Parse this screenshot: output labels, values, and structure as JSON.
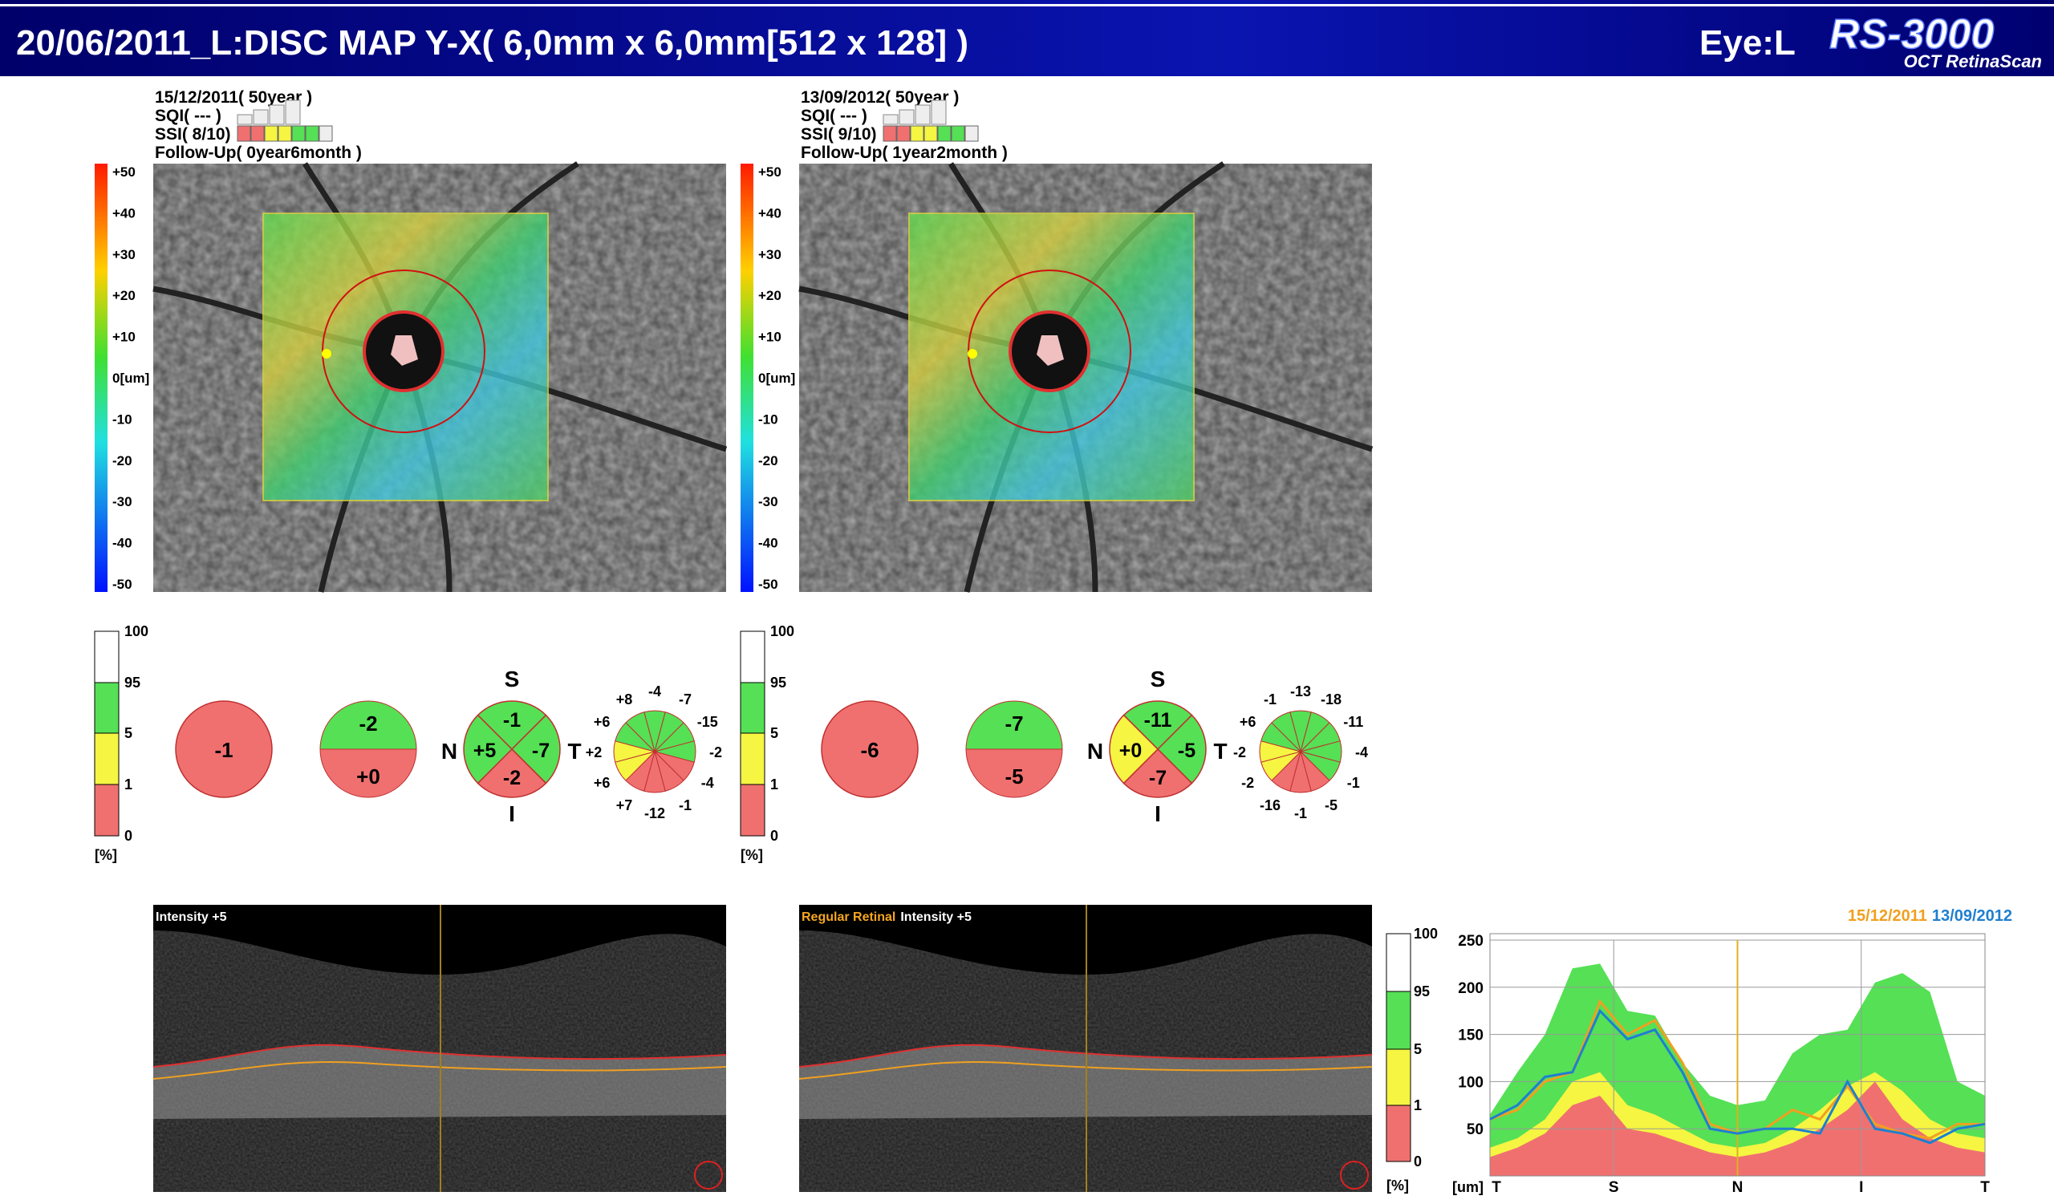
{
  "header": {
    "title": "20/06/2011_L:DISC MAP Y-X( 6,0mm x 6,0mm[512 x 128] )",
    "eye": "Eye:L",
    "logo": "RS-3000",
    "logo_sub": "OCT RetinaScan"
  },
  "panels": [
    {
      "date": "15/12/2011( 50year )",
      "sqi": "SQI( --- )",
      "ssi": "SSI( 8/10)",
      "followup": "Follow-Up( 0year6month )",
      "colorbar": [
        "+50",
        "+40",
        "+30",
        "+20",
        "+10",
        "0[um]",
        "-10",
        "-20",
        "-30",
        "-40",
        "-50"
      ],
      "prob_scale": [
        "100",
        "95",
        "5",
        "1",
        "0"
      ],
      "prob_unit": "[%]",
      "total": {
        "value": "-1",
        "color": "#f07070"
      },
      "halves": [
        {
          "value": "-2",
          "color": "#55e055"
        },
        {
          "value": "+0",
          "color": "#f07070"
        }
      ],
      "quadrant_labels": [
        "S",
        "T",
        "I",
        "N"
      ],
      "quadrants": [
        {
          "value": "-1",
          "color": "#55e055"
        },
        {
          "value": "-7",
          "color": "#55e055"
        },
        {
          "value": "-2",
          "color": "#f07070"
        },
        {
          "value": "+5",
          "color": "#55e055"
        }
      ],
      "clock": [
        {
          "value": "-4",
          "color": "#55e055"
        },
        {
          "value": "-7",
          "color": "#55e055"
        },
        {
          "value": "-15",
          "color": "#55e055"
        },
        {
          "value": "-2",
          "color": "#55e055"
        },
        {
          "value": "-4",
          "color": "#f07070"
        },
        {
          "value": "-1",
          "color": "#f07070"
        },
        {
          "value": "-12",
          "color": "#f07070"
        },
        {
          "value": "+7",
          "color": "#f07070"
        },
        {
          "value": "+6",
          "color": "#f5f542"
        },
        {
          "value": "+2",
          "color": "#f5f542"
        },
        {
          "value": "+6",
          "color": "#55e055"
        },
        {
          "value": "+8",
          "color": "#55e055"
        }
      ],
      "bscan": [
        {
          "text": "Intensity +5",
          "color": "#ffffff"
        }
      ]
    },
    {
      "date": "13/09/2012( 50year )",
      "sqi": "SQI( --- )",
      "ssi": "SSI( 9/10)",
      "followup": "Follow-Up( 1year2month )",
      "colorbar": [
        "+50",
        "+40",
        "+30",
        "+20",
        "+10",
        "0[um]",
        "-10",
        "-20",
        "-30",
        "-40",
        "-50"
      ],
      "prob_scale": [
        "100",
        "95",
        "5",
        "1",
        "0"
      ],
      "prob_unit": "[%]",
      "total": {
        "value": "-6",
        "color": "#f07070"
      },
      "halves": [
        {
          "value": "-7",
          "color": "#55e055"
        },
        {
          "value": "-5",
          "color": "#f07070"
        }
      ],
      "quadrant_labels": [
        "S",
        "T",
        "I",
        "N"
      ],
      "quadrants": [
        {
          "value": "-11",
          "color": "#55e055"
        },
        {
          "value": "-5",
          "color": "#55e055"
        },
        {
          "value": "-7",
          "color": "#f07070"
        },
        {
          "value": "+0",
          "color": "#f5f542"
        }
      ],
      "clock": [
        {
          "value": "-13",
          "color": "#55e055"
        },
        {
          "value": "-18",
          "color": "#55e055"
        },
        {
          "value": "-11",
          "color": "#55e055"
        },
        {
          "value": "-4",
          "color": "#55e055"
        },
        {
          "value": "-1",
          "color": "#55e055"
        },
        {
          "value": "-5",
          "color": "#f07070"
        },
        {
          "value": "-1",
          "color": "#f07070"
        },
        {
          "value": "-16",
          "color": "#f07070"
        },
        {
          "value": "-2",
          "color": "#f5f542"
        },
        {
          "value": "-2",
          "color": "#f5f542"
        },
        {
          "value": "+6",
          "color": "#55e055"
        },
        {
          "value": "-1",
          "color": "#55e055"
        }
      ],
      "bscan": [
        {
          "text": "Regular Retinal",
          "color": "#f5a623"
        },
        {
          "text": "Intensity +5",
          "color": "#ffffff"
        }
      ]
    }
  ],
  "chart_data": {
    "type": "line",
    "y_unit": "[um]",
    "prob_scale": [
      "100",
      "95",
      "5",
      "1",
      "0"
    ],
    "prob_unit": "[%]",
    "x": [
      0,
      20,
      40,
      60,
      80,
      100,
      120,
      140,
      160,
      180,
      200,
      220,
      240,
      260,
      280,
      300,
      320,
      340,
      360
    ],
    "xlim": [
      0,
      360
    ],
    "xticks": [
      {
        "value": 0,
        "label": "T"
      },
      {
        "value": 90,
        "label": "S"
      },
      {
        "value": 180,
        "label": "N"
      },
      {
        "value": 270,
        "label": "I"
      },
      {
        "value": 360,
        "label": "T"
      }
    ],
    "ylim": [
      0,
      250
    ],
    "yticks": [
      50,
      100,
      150,
      200,
      250
    ],
    "grid": true,
    "bands": [
      {
        "color": "#55e055",
        "values": [
          65,
          110,
          150,
          220,
          225,
          175,
          170,
          120,
          85,
          75,
          80,
          130,
          150,
          155,
          205,
          215,
          195,
          100,
          85
        ]
      },
      {
        "color": "#f5f542",
        "values": [
          30,
          40,
          60,
          100,
          110,
          75,
          65,
          50,
          35,
          30,
          35,
          50,
          70,
          95,
          110,
          90,
          60,
          45,
          40
        ]
      },
      {
        "color": "#f07070",
        "values": [
          20,
          30,
          45,
          75,
          85,
          50,
          45,
          35,
          25,
          20,
          25,
          35,
          50,
          70,
          100,
          60,
          40,
          30,
          25
        ]
      }
    ],
    "series": [
      {
        "name": "15/12/2011",
        "color": "#f0a020",
        "values": [
          60,
          70,
          100,
          110,
          185,
          150,
          165,
          120,
          55,
          45,
          50,
          70,
          60,
          95,
          55,
          45,
          40,
          55,
          55
        ]
      },
      {
        "name": "13/09/2012",
        "color": "#1e7fd0",
        "values": [
          60,
          75,
          105,
          110,
          175,
          145,
          155,
          110,
          50,
          45,
          50,
          50,
          45,
          100,
          50,
          45,
          35,
          50,
          55
        ]
      }
    ]
  }
}
